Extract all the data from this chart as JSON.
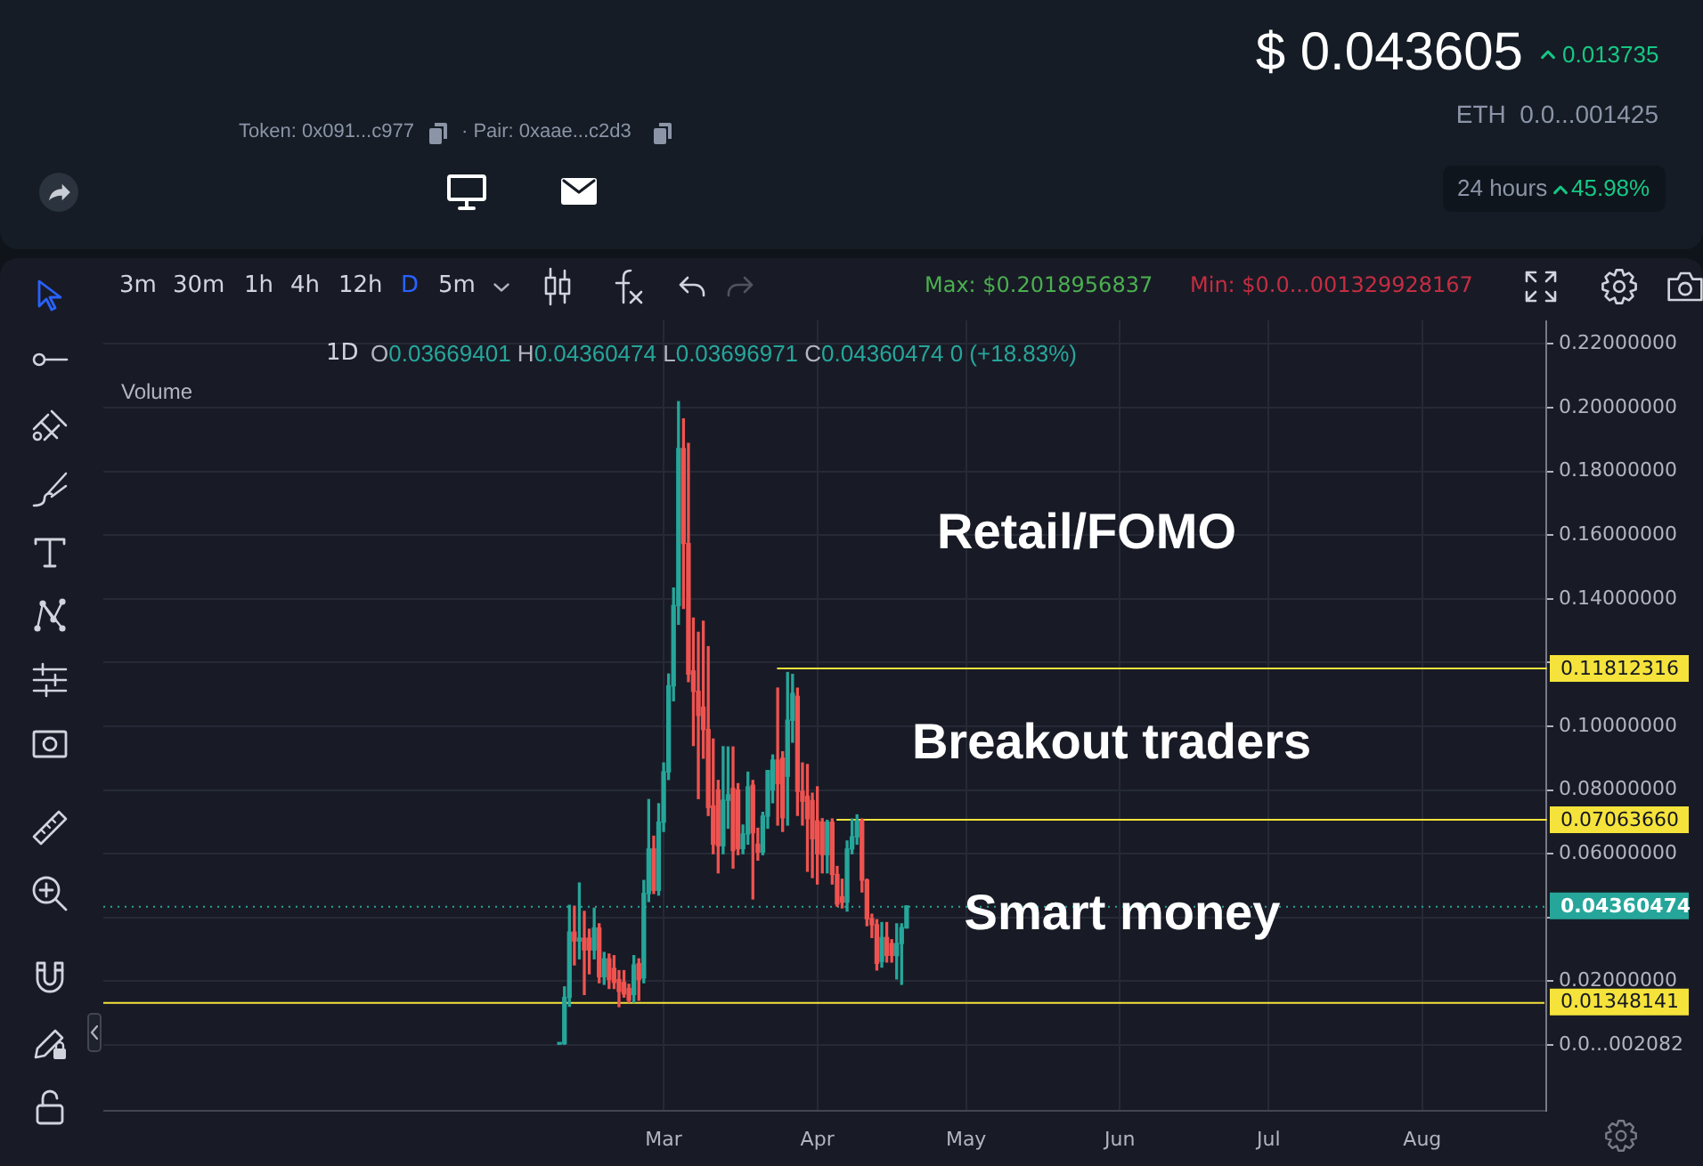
{
  "chart_data": {
    "type": "candlestick",
    "categories": [
      null,
      null,
      null,
      null,
      null,
      null,
      null,
      null,
      null,
      null,
      null,
      null,
      null,
      null,
      null,
      null,
      null,
      null,
      null,
      null,
      null,
      null,
      null,
      null,
      null,
      null,
      null,
      null,
      null,
      null,
      null,
      null,
      null,
      null,
      null,
      null,
      null,
      null,
      null,
      null,
      null,
      null,
      null,
      null,
      null,
      null,
      null,
      null,
      null,
      null,
      null,
      null,
      null,
      null,
      null,
      null,
      null,
      null,
      null,
      null,
      null,
      null,
      null,
      null,
      null,
      null,
      null,
      null,
      null,
      null,
      null,
      null,
      null,
      null,
      null,
      null,
      null,
      null,
      null,
      null,
      null,
      null,
      null,
      null,
      null,
      null,
      null,
      null,
      null,
      null,
      null,
      null,
      null,
      null,
      null,
      null,
      null,
      null,
      null,
      null,
      null,
      null,
      null,
      null,
      null,
      null,
      null,
      null,
      null,
      null,
      null,
      null,
      null,
      "Mar",
      null,
      null,
      null,
      null,
      null,
      null,
      null,
      null,
      null,
      null,
      null,
      null,
      null,
      null,
      null,
      null,
      null,
      null,
      null,
      null,
      null,
      null,
      null,
      null,
      null,
      null,
      null,
      null,
      null,
      null,
      "Apr",
      null,
      null,
      null,
      null,
      null,
      null,
      null,
      null,
      null,
      null,
      null,
      null,
      null,
      null,
      null,
      null,
      null,
      null,
      null,
      null,
      null,
      null,
      null,
      null,
      null,
      null,
      null,
      null,
      null,
      "May",
      null,
      null,
      null,
      null,
      null,
      null,
      null,
      null,
      null,
      null,
      null,
      null,
      null,
      null,
      null,
      null,
      null,
      null,
      null,
      null,
      null,
      null,
      null,
      null,
      null,
      null,
      null,
      null,
      null,
      null,
      "Jun",
      null,
      null,
      null,
      null,
      null,
      null,
      null,
      null,
      null,
      null,
      null,
      null,
      null,
      null,
      null,
      null,
      null,
      null,
      null,
      null,
      null,
      null,
      null,
      null,
      null,
      null,
      null,
      null,
      null,
      "Jul",
      null,
      null,
      null,
      null,
      null,
      null,
      null,
      null,
      null,
      null,
      null,
      null,
      null,
      null,
      null,
      null,
      null,
      null,
      null,
      null,
      null,
      null,
      null,
      null,
      null,
      null,
      null,
      null,
      null,
      null,
      "Aug",
      null,
      null,
      null,
      null,
      null,
      null,
      null,
      null,
      null,
      null,
      null,
      null,
      null,
      null,
      null,
      null,
      null,
      null,
      null,
      null,
      null,
      null,
      null,
      null,
      null
    ],
    "ohlc": [
      null,
      null,
      null,
      null,
      null,
      null,
      null,
      null,
      null,
      null,
      null,
      null,
      null,
      null,
      null,
      null,
      null,
      null,
      null,
      null,
      null,
      null,
      null,
      null,
      null,
      null,
      null,
      null,
      null,
      null,
      null,
      null,
      null,
      null,
      null,
      null,
      null,
      null,
      null,
      null,
      null,
      null,
      null,
      null,
      null,
      null,
      null,
      null,
      null,
      null,
      null,
      null,
      null,
      null,
      null,
      null,
      null,
      null,
      null,
      null,
      null,
      null,
      null,
      null,
      null,
      null,
      null,
      null,
      null,
      null,
      null,
      null,
      null,
      null,
      null,
      null,
      null,
      null,
      null,
      null,
      null,
      null,
      null,
      null,
      null,
      null,
      null,
      null,
      null,
      null,
      null,
      null,
      [
        0.0002,
        0.0006,
        0.0,
        0.0004
      ],
      [
        0.0004,
        0.0182,
        0.0002,
        0.0149
      ],
      [
        0.0149,
        0.0438,
        0.0121,
        0.0354
      ],
      [
        0.0354,
        0.0435,
        0.0251,
        0.0326
      ],
      [
        0.0326,
        0.0508,
        0.027,
        0.0335
      ],
      [
        0.0335,
        0.0419,
        0.0158,
        0.0298
      ],
      [
        0.0335,
        0.0363,
        0.0223,
        0.0298
      ],
      [
        0.0298,
        0.0429,
        0.027,
        0.0367
      ],
      [
        0.0367,
        0.038,
        0.0195,
        0.0214
      ],
      [
        0.0214,
        0.029,
        0.019,
        0.027
      ],
      [
        0.027,
        0.0285,
        0.0177,
        0.0205
      ],
      [
        0.024,
        0.028,
        0.0177,
        0.0196
      ],
      [
        0.0205,
        0.0233,
        0.012,
        0.0168
      ],
      [
        0.0196,
        0.0233,
        0.015,
        0.016
      ],
      [
        0.0177,
        0.019,
        0.0134,
        0.014
      ],
      [
        0.0158,
        0.028,
        0.0134,
        0.0251
      ],
      [
        0.0255,
        0.027,
        0.014,
        0.0205
      ],
      [
        0.021,
        0.0516,
        0.0195,
        0.0475
      ],
      [
        0.0475,
        0.077,
        0.045,
        0.0615
      ],
      [
        0.0615,
        0.0655,
        0.0475,
        0.0485
      ],
      [
        0.0485,
        0.0757,
        0.047,
        0.0699
      ],
      [
        0.0699,
        0.0885,
        0.067,
        0.0857
      ],
      [
        0.0857,
        0.1164,
        0.0833,
        0.1127
      ],
      [
        0.1127,
        0.1434,
        0.108,
        0.1379
      ],
      [
        0.1379,
        0.2019,
        0.132,
        0.1872
      ],
      [
        0.1872,
        0.1965,
        0.137,
        0.1574
      ],
      [
        0.1574,
        0.1888,
        0.114,
        0.1164
      ],
      [
        0.1174,
        0.134,
        0.094,
        0.111
      ],
      [
        0.111,
        0.1295,
        0.0773,
        0.1034
      ],
      [
        0.106,
        0.133,
        0.09,
        0.099
      ],
      [
        0.099,
        0.125,
        0.072,
        0.0745
      ],
      [
        0.075,
        0.096,
        0.06,
        0.063
      ],
      [
        0.08,
        0.083,
        0.054,
        0.0625
      ],
      [
        0.0625,
        0.0936,
        0.06,
        0.0768
      ],
      [
        0.0768,
        0.0935,
        0.068,
        0.0785
      ],
      [
        0.0805,
        0.0935,
        0.0555,
        0.061
      ],
      [
        0.08,
        0.082,
        0.0597,
        0.0616
      ],
      [
        0.0616,
        0.069,
        0.06,
        0.0662
      ],
      [
        0.0662,
        0.0856,
        0.063,
        0.081
      ],
      [
        0.0815,
        0.083,
        0.0458,
        0.0666
      ],
      [
        0.063,
        0.068,
        0.058,
        0.0605
      ],
      [
        0.0605,
        0.073,
        0.0597,
        0.0718
      ],
      [
        0.0718,
        0.0861,
        0.068,
        0.0861
      ],
      [
        0.08,
        0.091,
        0.076,
        0.0894
      ],
      [
        0.0894,
        0.112,
        0.069,
        0.082
      ],
      [
        0.09,
        0.092,
        0.067,
        0.0713
      ],
      [
        0.0843,
        0.1169,
        0.069,
        0.1019
      ],
      [
        0.1019,
        0.1163,
        0.095,
        0.1103
      ],
      [
        0.1094,
        0.112,
        0.072,
        0.0796
      ],
      [
        0.0796,
        0.0885,
        0.069,
        0.0765
      ],
      [
        0.078,
        0.088,
        0.0545,
        0.071
      ],
      [
        0.0767,
        0.079,
        0.0525,
        0.0647
      ],
      [
        0.0703,
        0.081,
        0.0505,
        0.06
      ],
      [
        0.0699,
        0.071,
        0.054,
        0.0597
      ],
      [
        0.0597,
        0.0705,
        0.054,
        0.0699
      ],
      [
        0.0699,
        0.0709,
        0.0505,
        0.0535
      ],
      [
        0.0535,
        0.056,
        0.0435,
        0.0442
      ],
      [
        0.0465,
        0.052,
        0.043,
        0.0448
      ],
      [
        0.0448,
        0.064,
        0.042,
        0.0615
      ],
      [
        0.0615,
        0.0709,
        0.06,
        0.0653
      ],
      [
        0.0653,
        0.0722,
        0.063,
        0.0703
      ],
      [
        0.0703,
        0.0709,
        0.048,
        0.0517
      ],
      [
        0.0517,
        0.052,
        0.0374,
        0.0396
      ],
      [
        0.0396,
        0.041,
        0.0337,
        0.0377
      ],
      [
        0.0377,
        0.0393,
        0.0235,
        0.0256
      ],
      [
        0.0262,
        0.0384,
        0.0244,
        0.0337
      ],
      [
        0.0337,
        0.0384,
        0.026,
        0.0281
      ],
      [
        0.0318,
        0.033,
        0.026,
        0.0281
      ],
      [
        0.028,
        0.038,
        0.0207,
        0.0318
      ],
      [
        0.0318,
        0.038,
        0.019,
        0.0368
      ],
      [
        0.0367,
        0.0436,
        0.0367,
        0.0436
      ],
      null,
      null,
      null,
      null,
      null,
      null,
      null,
      null,
      null,
      null,
      null,
      null,
      null,
      null,
      null,
      null,
      null,
      null,
      null,
      null,
      null,
      null,
      null,
      null,
      null,
      null,
      null,
      null,
      null,
      null,
      null,
      null,
      null,
      null,
      null,
      null,
      null,
      null,
      null,
      null,
      null,
      null,
      null,
      null,
      null,
      null,
      null,
      null,
      null,
      null,
      null,
      null,
      null,
      null,
      null,
      null,
      null,
      null,
      null,
      null,
      null,
      null,
      null,
      null,
      null,
      null,
      null,
      null,
      null,
      null,
      null,
      null,
      null,
      null,
      null,
      null,
      null,
      null,
      null,
      null,
      null,
      null,
      null,
      null,
      null,
      null,
      null,
      null,
      null,
      null,
      null,
      null,
      null,
      null,
      null,
      null,
      null,
      null,
      null,
      null,
      null,
      null,
      null,
      null,
      null,
      null,
      null,
      null,
      null,
      null,
      null,
      null,
      null,
      null,
      null,
      null,
      null,
      null,
      null,
      null,
      null,
      null,
      null,
      null,
      null,
      null,
      null,
      null,
      null
    ],
    "colors": [
      null,
      null,
      null,
      null,
      null,
      null,
      null,
      null,
      null,
      null,
      null,
      null,
      null,
      null,
      null,
      null,
      null,
      null,
      null,
      null,
      null,
      null,
      null,
      null,
      null,
      null,
      null,
      null,
      null,
      null,
      null,
      null,
      null,
      null,
      null,
      null,
      null,
      null,
      null,
      null,
      null,
      null,
      null,
      null,
      null,
      null,
      null,
      null,
      null,
      null,
      null,
      null,
      null,
      null,
      null,
      null,
      null,
      null,
      null,
      null,
      null,
      null,
      null,
      null,
      null,
      null,
      null,
      null,
      null,
      null,
      null,
      null,
      null,
      null,
      null,
      null,
      null,
      null,
      null,
      null,
      null,
      null,
      null,
      null,
      null,
      null,
      null,
      null,
      null,
      null,
      null,
      null,
      "#26a69a",
      "#26a69a",
      "#26a69a",
      "#ef5350",
      "#26a69a",
      "#ef5350",
      "#ef5350",
      "#26a69a",
      "#ef5350",
      "#26a69a",
      "#ef5350",
      "#ef5350",
      "#ef5350",
      "#ef5350",
      "#ef5350",
      "#26a69a",
      "#ef5350",
      "#26a69a",
      "#26a69a",
      "#ef5350",
      "#26a69a",
      "#26a69a",
      "#26a69a",
      "#26a69a",
      "#26a69a",
      "#ef5350",
      "#ef5350",
      "#ef5350",
      "#ef5350",
      "#ef5350",
      "#ef5350",
      "#ef5350",
      "#ef5350",
      "#26a69a",
      "#26a69a",
      "#ef5350",
      "#ef5350",
      "#26a69a",
      "#26a69a",
      "#ef5350",
      "#ef5350",
      "#26a69a",
      "#26a69a",
      "#26a69a",
      "#ef5350",
      "#ef5350",
      "#26a69a",
      "#26a69a",
      "#ef5350",
      "#ef5350",
      "#ef5350",
      "#ef5350",
      "#ef5350",
      "#ef5350",
      "#26a69a",
      "#ef5350",
      "#ef5350",
      "#ef5350",
      "#26a69a",
      "#26a69a",
      "#26a69a",
      "#ef5350",
      "#ef5350",
      "#ef5350",
      "#ef5350",
      "#26a69a",
      "#ef5350",
      "#ef5350",
      "#26a69a",
      "#26a69a",
      "#26a69a",
      null,
      null,
      null,
      null,
      null,
      null,
      null,
      null,
      null,
      null,
      null,
      null,
      null,
      null,
      null,
      null,
      null,
      null,
      null,
      null,
      null,
      null,
      null,
      null,
      null,
      null,
      null,
      null,
      null,
      null,
      null,
      null,
      null,
      null,
      null,
      null,
      null,
      null,
      null,
      null,
      null,
      null,
      null,
      null,
      null,
      null,
      null,
      null,
      null,
      null,
      null,
      null,
      null,
      null,
      null,
      null,
      null,
      null,
      null,
      null,
      null,
      null,
      null,
      null,
      null,
      null,
      null,
      null,
      null,
      null,
      null,
      null,
      null,
      null,
      null,
      null,
      null,
      null,
      null,
      null,
      null,
      null,
      null,
      null,
      null,
      null,
      null,
      null,
      null,
      null,
      null,
      null,
      null,
      null,
      null,
      null,
      null,
      null,
      null,
      null,
      null,
      null,
      null,
      null,
      null,
      null,
      null,
      null,
      null,
      null,
      null,
      null,
      null,
      null,
      null,
      null,
      null,
      null,
      null,
      null,
      null,
      null,
      null,
      null,
      null,
      null,
      null,
      null,
      null
    ],
    "series": [
      {
        "type": "line",
        "color": "#f5e33b",
        "values": [
          null,
          null,
          null,
          null,
          null,
          null,
          null,
          null,
          null,
          null,
          null,
          null,
          null,
          null,
          null,
          null,
          null,
          null,
          null,
          null,
          null,
          null,
          null,
          null,
          null,
          null,
          null,
          null,
          null,
          null,
          null,
          null,
          null,
          null,
          null,
          null,
          null,
          null,
          null,
          null,
          null,
          null,
          null,
          null,
          null,
          null,
          null,
          null,
          null,
          null,
          null,
          null,
          null,
          null,
          null,
          null,
          null,
          null,
          null,
          null,
          null,
          null,
          null,
          null,
          null,
          null,
          null,
          null,
          null,
          null,
          null,
          null,
          null,
          null,
          null,
          null,
          null,
          null,
          null,
          null,
          null,
          null,
          null,
          null,
          null,
          null,
          null,
          null,
          null,
          null,
          null,
          null,
          null,
          null,
          null,
          null,
          null,
          null,
          null,
          null,
          null,
          null,
          null,
          null,
          null,
          null,
          null,
          null,
          null,
          null,
          null,
          null,
          null,
          null,
          null,
          null,
          null,
          null,
          null,
          null,
          null,
          null,
          null,
          null,
          null,
          null,
          null,
          null,
          null,
          null,
          null,
          null,
          null,
          null,
          null,
          null,
          0.11812316,
          0.11812316,
          0.11812316,
          0.11812316,
          0.11812316,
          0.11812316,
          0.11812316,
          0.11812316,
          0.11812316,
          0.11812316,
          0.11812316,
          0.11812316,
          0.11812316,
          0.11812316,
          0.11812316,
          0.11812316,
          0.11812316,
          0.11812316,
          0.11812316,
          0.11812316,
          0.11812316,
          0.11812316,
          0.11812316,
          0.11812316,
          0.11812316,
          0.11812316,
          0.11812316,
          0.11812316,
          0.11812316,
          0.11812316,
          0.11812316,
          0.11812316,
          0.11812316,
          0.11812316,
          0.11812316,
          0.11812316,
          0.11812316,
          0.11812316,
          0.11812316,
          0.11812316,
          0.11812316,
          0.11812316,
          0.11812316,
          0.11812316,
          0.11812316,
          0.11812316,
          0.11812316,
          0.11812316,
          0.11812316,
          0.11812316,
          0.11812316,
          0.11812316,
          0.11812316,
          0.11812316,
          0.11812316,
          0.11812316,
          0.11812316,
          0.11812316,
          0.11812316,
          0.11812316,
          0.11812316,
          0.11812316,
          0.11812316,
          0.11812316,
          0.11812316,
          0.11812316,
          0.11812316,
          0.11812316,
          0.11812316,
          0.11812316,
          0.11812316,
          0.11812316,
          0.11812316,
          0.11812316,
          0.11812316,
          0.11812316,
          0.11812316,
          0.11812316,
          0.11812316,
          0.11812316,
          0.11812316,
          0.11812316,
          0.11812316,
          0.11812316,
          0.11812316,
          0.11812316,
          0.11812316,
          0.11812316,
          0.11812316,
          0.11812316,
          0.11812316,
          0.11812316,
          0.11812316,
          0.11812316,
          0.11812316,
          0.11812316,
          0.11812316,
          0.11812316,
          0.11812316,
          0.11812316,
          0.11812316,
          0.11812316,
          0.11812316,
          0.11812316,
          0.11812316,
          0.11812316,
          0.11812316,
          0.11812316,
          0.11812316,
          0.11812316,
          0.11812316,
          0.11812316,
          0.11812316,
          0.11812316,
          0.11812316,
          0.11812316,
          0.11812316,
          0.11812316,
          0.11812316,
          0.11812316,
          0.11812316,
          0.11812316,
          0.11812316,
          0.11812316,
          0.11812316,
          0.11812316,
          0.11812316,
          0.11812316,
          0.11812316,
          0.11812316,
          0.11812316,
          0.11812316,
          0.11812316,
          0.11812316,
          0.11812316,
          0.11812316,
          0.11812316,
          0.11812316,
          0.11812316,
          0.11812316,
          0.11812316,
          0.11812316,
          0.11812316,
          0.11812316,
          0.11812316,
          0.11812316,
          0.11812316,
          0.11812316,
          0.11812316,
          0.11812316,
          0.11812316,
          0.11812316,
          0.11812316,
          0.11812316,
          0.11812316,
          0.11812316
        ],
        "value_labels": [
          null,
          null,
          null,
          null,
          null,
          null,
          null,
          null,
          null,
          null,
          null,
          null,
          null,
          null,
          null,
          null,
          null,
          null,
          null,
          null,
          null,
          null,
          null,
          null,
          null,
          null,
          null,
          null,
          null,
          null,
          null,
          null,
          null,
          null,
          null,
          null,
          null,
          null,
          null,
          null,
          null,
          null,
          null,
          null,
          null,
          null,
          null,
          null,
          null,
          null,
          null,
          null,
          null,
          null,
          null,
          null,
          null,
          null,
          null,
          null,
          null,
          null,
          null,
          null,
          null,
          null,
          null,
          null,
          null,
          null,
          null,
          null,
          null,
          null,
          null,
          null,
          null,
          null,
          null,
          null,
          null,
          null,
          null,
          null,
          null,
          null,
          null,
          null,
          null,
          null,
          null,
          null,
          null,
          null,
          null,
          null,
          null,
          null,
          null,
          null,
          null,
          null,
          null,
          null,
          null,
          null,
          null,
          null,
          null,
          null,
          null,
          null,
          null,
          null,
          null,
          null,
          null,
          null,
          null,
          null,
          null,
          null,
          null,
          null,
          null,
          null,
          null,
          null,
          null,
          null,
          null,
          null,
          null,
          null,
          null,
          null,
          null,
          null,
          null,
          null,
          null,
          null,
          null,
          null,
          null,
          null,
          null,
          null,
          null,
          null,
          null,
          null,
          null,
          null,
          null,
          null,
          null,
          null,
          null,
          null,
          null,
          null,
          null,
          null,
          null,
          null,
          null,
          null,
          null,
          null,
          null,
          null,
          null,
          null,
          null,
          null,
          null,
          null,
          null,
          null,
          null,
          null,
          null,
          null,
          null,
          null,
          null,
          null,
          null,
          null,
          null,
          null,
          null,
          null,
          null,
          null,
          null,
          null,
          null,
          null,
          null,
          null,
          null,
          null,
          null,
          null,
          null,
          null,
          null,
          null,
          null,
          null,
          null,
          null,
          null,
          null,
          null,
          null,
          null,
          null,
          null,
          null,
          null,
          null,
          null,
          null,
          null,
          null,
          null,
          null,
          null,
          null,
          null,
          null,
          null,
          null,
          null,
          null,
          null,
          null,
          null,
          null,
          null,
          null,
          null,
          null,
          null,
          null,
          null,
          null,
          null,
          null,
          null,
          null,
          null,
          null,
          null,
          null,
          null,
          null,
          null,
          null,
          null,
          null,
          null,
          null,
          null,
          null,
          null,
          null,
          null,
          null,
          null,
          null,
          null,
          null,
          null,
          null,
          null,
          null,
          null,
          null,
          null,
          null,
          null,
          null,
          null,
          null,
          null,
          null,
          null,
          "0.11812316"
        ]
      },
      {
        "type": "line",
        "color": "#f5e33b",
        "values": [
          null,
          null,
          null,
          null,
          null,
          null,
          null,
          null,
          null,
          null,
          null,
          null,
          null,
          null,
          null,
          null,
          null,
          null,
          null,
          null,
          null,
          null,
          null,
          null,
          null,
          null,
          null,
          null,
          null,
          null,
          null,
          null,
          null,
          null,
          null,
          null,
          null,
          null,
          null,
          null,
          null,
          null,
          null,
          null,
          null,
          null,
          null,
          null,
          null,
          null,
          null,
          null,
          null,
          null,
          null,
          null,
          null,
          null,
          null,
          null,
          null,
          null,
          null,
          null,
          null,
          null,
          null,
          null,
          null,
          null,
          null,
          null,
          null,
          null,
          null,
          null,
          null,
          null,
          null,
          null,
          null,
          null,
          null,
          null,
          null,
          null,
          null,
          null,
          null,
          null,
          null,
          null,
          null,
          null,
          null,
          null,
          null,
          null,
          null,
          null,
          null,
          null,
          null,
          null,
          null,
          null,
          null,
          null,
          null,
          null,
          null,
          null,
          null,
          null,
          null,
          null,
          null,
          null,
          null,
          null,
          null,
          null,
          null,
          null,
          null,
          null,
          null,
          null,
          null,
          null,
          null,
          null,
          null,
          null,
          null,
          null,
          null,
          null,
          null,
          null,
          null,
          null,
          null,
          null,
          null,
          null,
          null,
          null,
          0.0706366,
          0.0706366,
          0.0706366,
          0.0706366,
          0.0706366,
          0.0706366,
          0.0706366,
          0.0706366,
          0.0706366,
          0.0706366,
          0.0706366,
          0.0706366,
          0.0706366,
          0.0706366,
          0.0706366,
          0.0706366,
          0.0706366,
          0.0706366,
          0.0706366,
          0.0706366,
          0.0706366,
          0.0706366,
          0.0706366,
          0.0706366,
          0.0706366,
          0.0706366,
          0.0706366,
          0.0706366,
          0.0706366,
          0.0706366,
          0.0706366,
          0.0706366,
          0.0706366,
          0.0706366,
          0.0706366,
          0.0706366,
          0.0706366,
          0.0706366,
          0.0706366,
          0.0706366,
          0.0706366,
          0.0706366,
          0.0706366,
          0.0706366,
          0.0706366,
          0.0706366,
          0.0706366,
          0.0706366,
          0.0706366,
          0.0706366,
          0.0706366,
          0.0706366,
          0.0706366,
          0.0706366,
          0.0706366,
          0.0706366,
          0.0706366,
          0.0706366,
          0.0706366,
          0.0706366,
          0.0706366,
          0.0706366,
          0.0706366,
          0.0706366,
          0.0706366,
          0.0706366,
          0.0706366,
          0.0706366,
          0.0706366,
          0.0706366,
          0.0706366,
          0.0706366,
          0.0706366,
          0.0706366,
          0.0706366,
          0.0706366,
          0.0706366,
          0.0706366,
          0.0706366,
          0.0706366,
          0.0706366,
          0.0706366,
          0.0706366,
          0.0706366,
          0.0706366,
          0.0706366,
          0.0706366,
          0.0706366,
          0.0706366,
          0.0706366,
          0.0706366,
          0.0706366,
          0.0706366,
          0.0706366,
          0.0706366,
          0.0706366,
          0.0706366,
          0.0706366,
          0.0706366,
          0.0706366,
          0.0706366,
          0.0706366,
          0.0706366,
          0.0706366,
          0.0706366,
          0.0706366,
          0.0706366,
          0.0706366,
          0.0706366,
          0.0706366,
          0.0706366,
          0.0706366,
          0.0706366,
          0.0706366,
          0.0706366,
          0.0706366,
          0.0706366,
          0.0706366,
          0.0706366,
          0.0706366,
          0.0706366,
          0.0706366,
          0.0706366,
          0.0706366,
          0.0706366,
          0.0706366,
          0.0706366,
          0.0706366,
          0.0706366,
          0.0706366,
          0.0706366,
          0.0706366,
          0.0706366,
          0.0706366,
          0.0706366,
          0.0706366,
          0.0706366,
          0.0706366,
          0.0706366,
          0.0706366,
          0.0706366,
          0.0706366,
          0.0706366,
          0.0706366
        ],
        "value_labels": [
          null,
          null,
          null,
          null,
          null,
          null,
          null,
          null,
          null,
          null,
          null,
          null,
          null,
          null,
          null,
          null,
          null,
          null,
          null,
          null,
          null,
          null,
          null,
          null,
          null,
          null,
          null,
          null,
          null,
          null,
          null,
          null,
          null,
          null,
          null,
          null,
          null,
          null,
          null,
          null,
          null,
          null,
          null,
          null,
          null,
          null,
          null,
          null,
          null,
          null,
          null,
          null,
          null,
          null,
          null,
          null,
          null,
          null,
          null,
          null,
          null,
          null,
          null,
          null,
          null,
          null,
          null,
          null,
          null,
          null,
          null,
          null,
          null,
          null,
          null,
          null,
          null,
          null,
          null,
          null,
          null,
          null,
          null,
          null,
          null,
          null,
          null,
          null,
          null,
          null,
          null,
          null,
          null,
          null,
          null,
          null,
          null,
          null,
          null,
          null,
          null,
          null,
          null,
          null,
          null,
          null,
          null,
          null,
          null,
          null,
          null,
          null,
          null,
          null,
          null,
          null,
          null,
          null,
          null,
          null,
          null,
          null,
          null,
          null,
          null,
          null,
          null,
          null,
          null,
          null,
          null,
          null,
          null,
          null,
          null,
          null,
          null,
          null,
          null,
          null,
          null,
          null,
          null,
          null,
          null,
          null,
          null,
          null,
          null,
          null,
          null,
          null,
          null,
          null,
          null,
          null,
          null,
          null,
          null,
          null,
          null,
          null,
          null,
          null,
          null,
          null,
          null,
          null,
          null,
          null,
          null,
          null,
          null,
          null,
          null,
          null,
          null,
          null,
          null,
          null,
          null,
          null,
          null,
          null,
          null,
          null,
          null,
          null,
          null,
          null,
          null,
          null,
          null,
          null,
          null,
          null,
          null,
          null,
          null,
          null,
          null,
          null,
          null,
          null,
          null,
          null,
          null,
          null,
          null,
          null,
          null,
          null,
          null,
          null,
          null,
          null,
          null,
          null,
          null,
          null,
          null,
          null,
          null,
          null,
          null,
          null,
          null,
          null,
          null,
          null,
          null,
          null,
          null,
          null,
          null,
          null,
          null,
          null,
          null,
          null,
          null,
          null,
          null,
          null,
          null,
          null,
          null,
          null,
          null,
          null,
          null,
          null,
          null,
          null,
          null,
          null,
          null,
          null,
          null,
          null,
          null,
          null,
          null,
          null,
          null,
          null,
          null,
          null,
          null,
          null,
          null,
          null,
          null,
          null,
          null,
          null,
          null,
          null,
          null,
          null,
          null,
          null,
          null,
          null,
          null,
          null,
          null,
          null,
          null,
          null,
          null,
          "0.07063660"
        ]
      }
    ],
    "ref_lines": [
      {
        "axis": "y",
        "value": 0.04360474,
        "label": "0.04360474",
        "color": "#26a69a",
        "line_style": "dotted"
      },
      {
        "axis": "y",
        "value": 0.01348141,
        "label": "0.01348141",
        "color": "#f5e33b"
      }
    ],
    "ylim": [
      -0.0207,
      0.2274
    ],
    "yticks": [
      {
        "value": 0,
        "label": "0.0...002082"
      },
      {
        "value": 0.02,
        "label": "0.02000000"
      },
      {
        "value": 0.04,
        "label": null
      },
      {
        "value": 0.06,
        "label": "0.06000000"
      },
      {
        "value": 0.08,
        "label": "0.08000000"
      },
      {
        "value": 0.1,
        "label": "0.10000000"
      },
      {
        "value": 0.12,
        "label": null
      },
      {
        "value": 0.14,
        "label": "0.14000000"
      },
      {
        "value": 0.16,
        "label": "0.16000000"
      },
      {
        "value": 0.18,
        "label": "0.18000000"
      },
      {
        "value": 0.2,
        "label": "0.20000000"
      },
      {
        "value": 0.22,
        "label": "0.22000000"
      }
    ],
    "grid": true,
    "annotations": [
      "Token: 0x091...c977",
      "· Pair: 0xaae...c2d3",
      "$ 0.043605",
      "0.013735",
      "ETH  0.0...001425",
      "24 hours",
      "45.98%",
      "3m",
      "30m",
      "1h",
      "4h",
      "12h",
      "D",
      "5m",
      "Max: $0.2018956837",
      "Min: $0.0...001329928167",
      "1D",
      "O0.03669401 H0.04360474 L0.03696971 C0.04360474 0 (+18.83%)",
      "Volume",
      "Retail/FOMO",
      "Breakout traders",
      "Smart money"
    ]
  }
}
